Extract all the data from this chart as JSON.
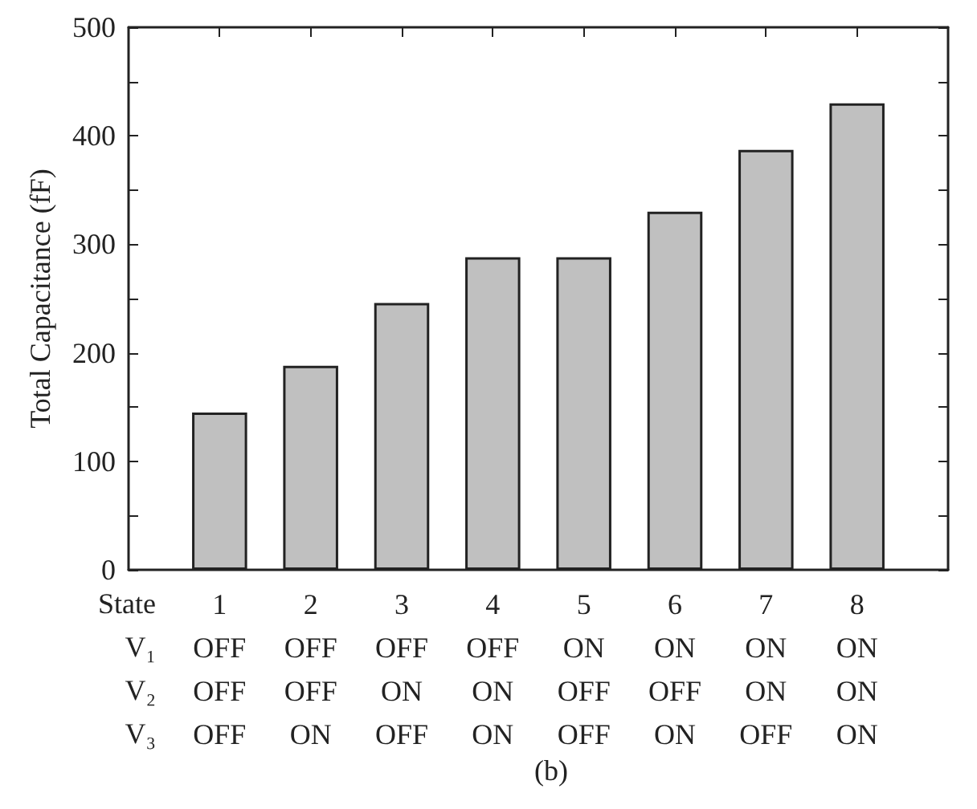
{
  "chart_data": {
    "type": "bar",
    "title": "(b)",
    "ylabel": "Total Capacitance (fF)",
    "xlabel": "State\nV₁\nV₂\nV₃",
    "categories": [
      "1\nOFF\nOFF\nOFF",
      "2\nOFF\nOFF\nON",
      "3\nOFF\nON\nOFF",
      "4\nOFF\nON\nON",
      "5\nON\nOFF\nOFF",
      "6\nON\nOFF\nON",
      "7\nON\nON\nOFF",
      "8\nON\nON\nON"
    ],
    "values": [
      145,
      188,
      246,
      288,
      288,
      330,
      387,
      430
    ],
    "color": "#c0c0c0",
    "ylim": [
      0,
      500
    ],
    "yticks": [
      0,
      {
        "value": 50,
        "label": null
      },
      100,
      {
        "value": 150,
        "label": null
      },
      200,
      {
        "value": 250,
        "label": null
      },
      300,
      {
        "value": 350,
        "label": null
      },
      400,
      {
        "value": 450,
        "label": null
      },
      500
    ],
    "grid": false
  }
}
